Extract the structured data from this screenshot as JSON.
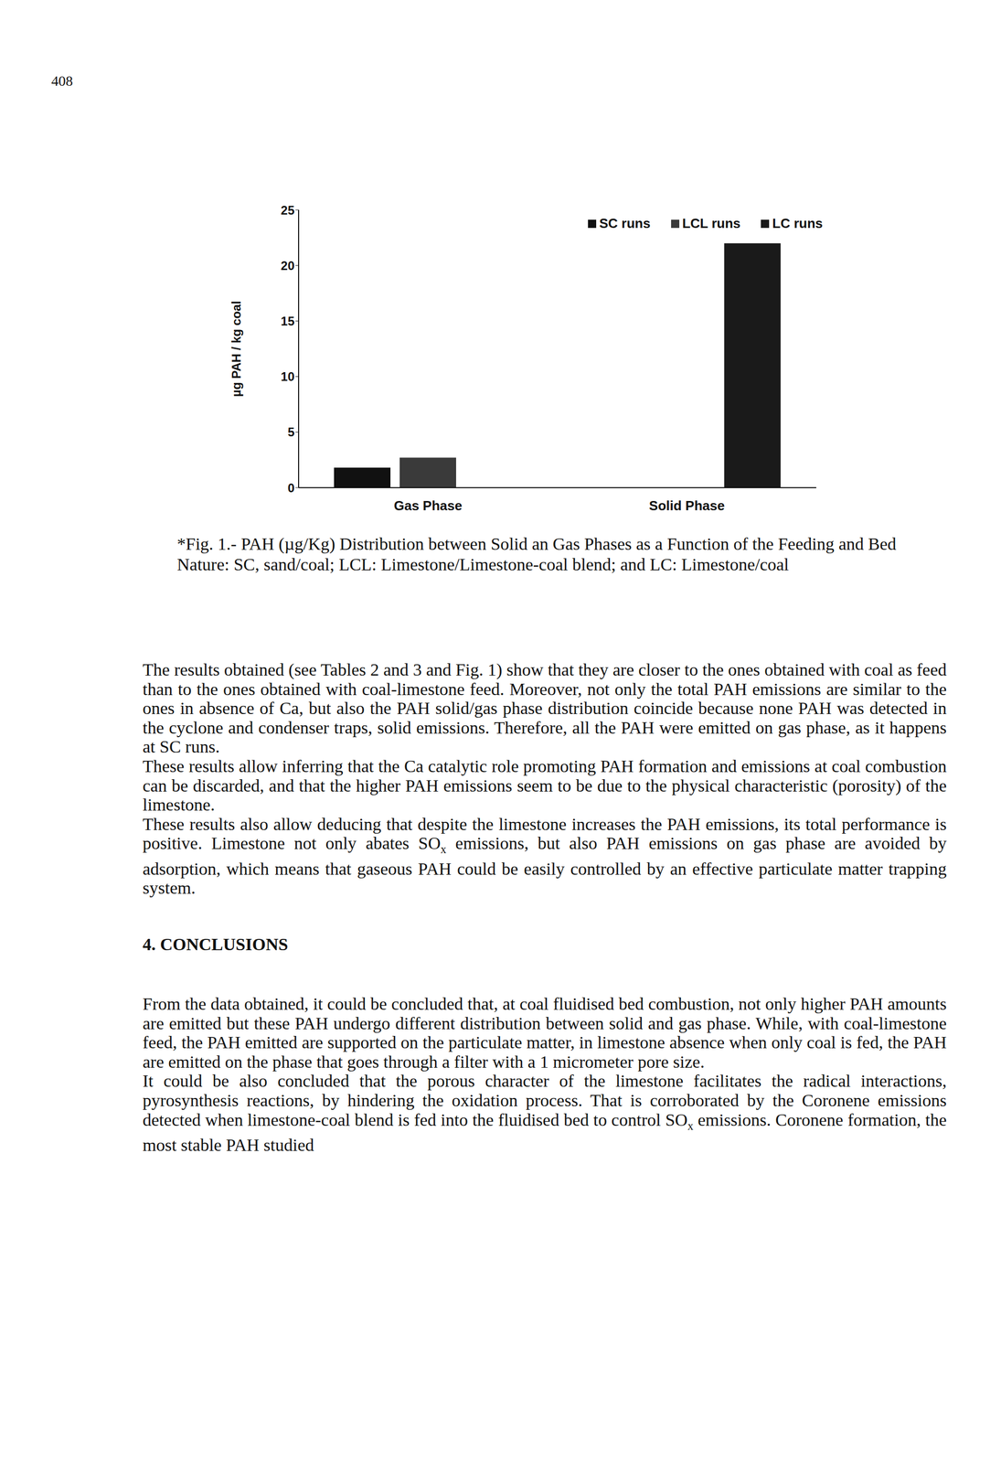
{
  "page_number": "408",
  "chart_data": {
    "type": "bar",
    "categories": [
      "Gas Phase",
      "Solid Phase"
    ],
    "y_label": "µg PAH / kg coal",
    "ylim": [
      0,
      25
    ],
    "yticks": [
      0,
      5,
      10,
      15,
      20,
      25
    ],
    "series": [
      {
        "name": "SC runs",
        "color": "#111111",
        "values": [
          1.8,
          0
        ]
      },
      {
        "name": "LCL runs",
        "color": "#3a3a3a",
        "values": [
          2.7,
          0
        ]
      },
      {
        "name": "LC runs",
        "color": "#1a1a1a",
        "values": [
          0,
          22
        ]
      }
    ]
  },
  "caption": "*Fig. 1.- PAH (µg/Kg) Distribution between Solid an Gas Phases as a Function of the Feeding and Bed Nature: SC, sand/coal; LCL: Limestone/Limestone-coal blend; and LC: Limestone/coal",
  "body": [
    "The results obtained (see Tables 2 and 3 and Fig. 1) show that they are closer to the ones obtained with coal as feed than to the ones obtained with coal-limestone feed. Moreover, not only the total PAH emissions are similar to the ones in absence of Ca, but also the PAH solid/gas phase distribution coincide because none PAH was detected in the cyclone and condenser traps, solid emissions. Therefore, all the PAH were emitted on gas phase, as it happens at SC runs.",
    "These results allow inferring that the Ca catalytic role promoting PAH formation and emissions at coal combustion can be discarded, and that the higher PAH emissions seem to be due to the physical characteristic (porosity) of the limestone.",
    "These results also allow deducing that despite the limestone increases the PAH emissions, its total performance is positive. Limestone not only abates SOx emissions, but also PAH emissions on gas phase are avoided by adsorption, which means that gaseous PAH could be easily controlled by an effective particulate matter trapping system."
  ],
  "section_heading": "4. CONCLUSIONS",
  "conclusions": [
    "From the data obtained, it could be concluded that, at coal fluidised bed combustion, not only higher PAH amounts are emitted but these PAH undergo different distribution between solid and gas phase. While, with coal-limestone feed, the PAH emitted are supported on the particulate matter, in limestone absence when only coal is fed, the PAH are emitted on the phase that goes through a filter with a 1 micrometer pore size.",
    "It could be also concluded that the porous character of the limestone facilitates the radical interactions, pyrosynthesis reactions, by hindering the oxidation process. That is corroborated by the Coronene emissions detected when limestone-coal blend is fed into the fluidised bed to control SOx emissions. Coronene formation, the most stable PAH studied"
  ]
}
